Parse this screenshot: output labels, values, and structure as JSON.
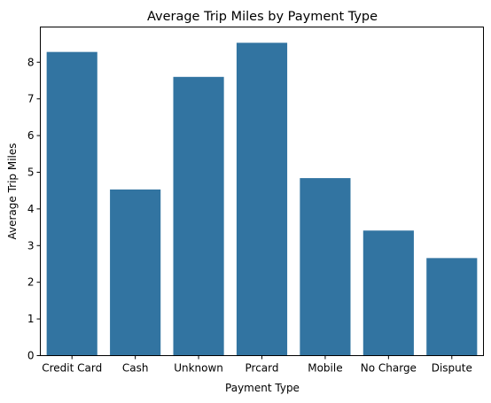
{
  "chart_data": {
    "type": "bar",
    "title": "Average Trip Miles by Payment Type",
    "xlabel": "Payment Type",
    "ylabel": "Average Trip Miles",
    "categories": [
      "Credit Card",
      "Cash",
      "Unknown",
      "Prcard",
      "Mobile",
      "No Charge",
      "Dispute"
    ],
    "values": [
      8.28,
      4.53,
      7.6,
      8.53,
      4.84,
      3.41,
      2.66
    ],
    "ylim": [
      0,
      8.96
    ],
    "yticks": [
      "0",
      "1",
      "2",
      "3",
      "4",
      "5",
      "6",
      "7",
      "8"
    ],
    "grid": false,
    "bar_color": "#3274a1"
  }
}
